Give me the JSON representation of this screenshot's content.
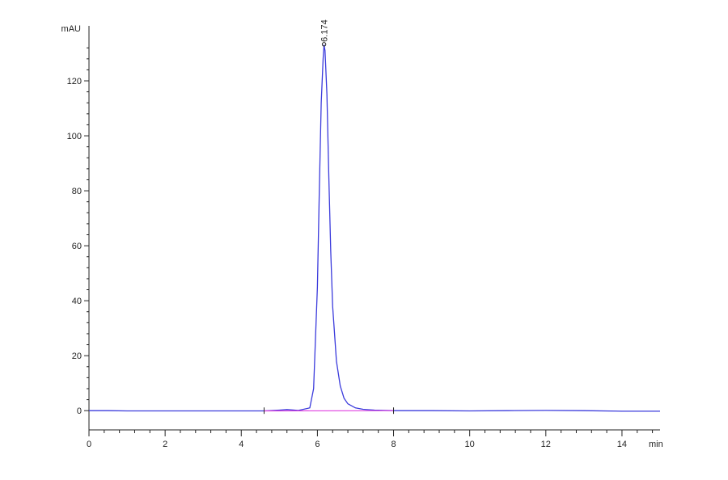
{
  "chart_data": {
    "type": "line",
    "title": "",
    "xlabel": "min",
    "ylabel": "mAU",
    "xlim": [
      0,
      15
    ],
    "ylim": [
      -7,
      140
    ],
    "x_ticks": [
      0,
      2,
      4,
      6,
      8,
      10,
      12,
      14
    ],
    "y_ticks": [
      0,
      20,
      40,
      60,
      80,
      100,
      120
    ],
    "grid": false,
    "series": [
      {
        "color": "#3b3bdc",
        "x": [
          0,
          0.5,
          1,
          2,
          3,
          4,
          4.6,
          5.0,
          5.2,
          5.5,
          5.8,
          5.9,
          6.0,
          6.05,
          6.1,
          6.15,
          6.174,
          6.2,
          6.25,
          6.3,
          6.35,
          6.4,
          6.5,
          6.6,
          6.7,
          6.8,
          7.0,
          7.2,
          7.5,
          8.0,
          9.0,
          10.0,
          11.0,
          12.0,
          13.0,
          14.0,
          15.0
        ],
        "values": [
          0,
          0,
          -0.1,
          -0.1,
          -0.1,
          -0.1,
          -0.1,
          0.2,
          0.4,
          0.1,
          1.0,
          8.0,
          45.0,
          80.0,
          112.0,
          128.0,
          133.0,
          131.0,
          115.0,
          85.0,
          58.0,
          38.0,
          18.0,
          9.0,
          4.5,
          2.5,
          1.0,
          0.5,
          0.2,
          0.0,
          0.0,
          -0.1,
          0.0,
          0.1,
          0.0,
          -0.2,
          -0.2
        ]
      },
      {
        "color": "#e040e0",
        "x": [
          4.6,
          8.0
        ],
        "values": [
          -0.1,
          0.0
        ]
      }
    ],
    "annotations": [
      {
        "text": "6.174",
        "x": 6.174,
        "y": 133.0
      }
    ],
    "baseline_marks": [
      4.6,
      8.0
    ]
  }
}
